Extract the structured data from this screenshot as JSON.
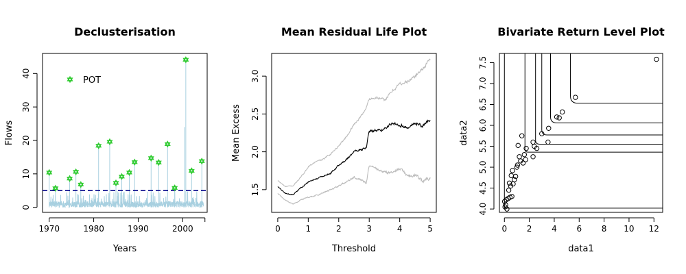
{
  "chart_data": [
    {
      "type": "line",
      "title": "Declusterisation",
      "xlabel": "Years",
      "ylabel": "Flows",
      "xlim": [
        1968.5,
        2005.5
      ],
      "ylim": [
        -1.5,
        46
      ],
      "xticks": [
        1970,
        1980,
        1990,
        2000
      ],
      "xtick_labels": [
        "1970",
        "1980",
        "1990",
        "2000"
      ],
      "xtick_extra": [
        2005
      ],
      "yticks": [
        0,
        10,
        20,
        30,
        40
      ],
      "ytick_labels": [
        "0",
        "10",
        "20",
        "30",
        "40"
      ],
      "threshold": 5,
      "legend": {
        "label": "POT",
        "position": "top-left"
      },
      "colors": {
        "series": "#a8d0e0",
        "pot": "#33cc33",
        "threshold": "#000088"
      },
      "pot_points": [
        {
          "x": 1970.0,
          "y": 10.4
        },
        {
          "x": 1971.4,
          "y": 5.7
        },
        {
          "x": 1974.6,
          "y": 8.6
        },
        {
          "x": 1976.0,
          "y": 10.6
        },
        {
          "x": 1977.1,
          "y": 6.8
        },
        {
          "x": 1981.1,
          "y": 18.4
        },
        {
          "x": 1983.6,
          "y": 19.6
        },
        {
          "x": 1985.0,
          "y": 7.3
        },
        {
          "x": 1986.3,
          "y": 9.2
        },
        {
          "x": 1988.0,
          "y": 10.4
        },
        {
          "x": 1989.2,
          "y": 13.5
        },
        {
          "x": 1992.9,
          "y": 14.7
        },
        {
          "x": 1994.6,
          "y": 13.4
        },
        {
          "x": 1996.6,
          "y": 18.9
        },
        {
          "x": 1998.2,
          "y": 5.8
        },
        {
          "x": 2000.7,
          "y": 44.1
        },
        {
          "x": 2002.0,
          "y": 10.9
        },
        {
          "x": 2004.3,
          "y": 13.8
        }
      ]
    },
    {
      "type": "line",
      "title": "Mean Residual Life Plot",
      "xlabel": "Threshold",
      "ylabel": "Mean Excess",
      "xlim": [
        -0.2,
        5.2
      ],
      "ylim": [
        1.2,
        3.3
      ],
      "xticks": [
        0,
        1,
        2,
        3,
        4,
        5
      ],
      "xtick_labels": [
        "0",
        "1",
        "2",
        "3",
        "4",
        "5"
      ],
      "yticks": [
        1.5,
        2.0,
        2.5,
        3.0
      ],
      "ytick_labels": [
        "1.5",
        "2.0",
        "2.5",
        "3.0"
      ],
      "colors": {
        "mean": "#000000",
        "ci": "#bbbbbb"
      },
      "x": [
        0,
        0.25,
        0.5,
        0.75,
        1.0,
        1.25,
        1.5,
        1.75,
        2.0,
        2.25,
        2.5,
        2.75,
        2.9,
        3.0,
        3.25,
        3.5,
        3.75,
        4.0,
        4.25,
        4.5,
        4.75,
        5.0
      ],
      "series": [
        {
          "values": [
            1.62,
            1.54,
            1.55,
            1.66,
            1.8,
            1.87,
            1.9,
            1.98,
            2.08,
            2.2,
            2.36,
            2.48,
            2.58,
            2.7,
            2.72,
            2.68,
            2.8,
            2.9,
            2.92,
            3.0,
            3.1,
            3.22
          ]
        },
        {
          "values": [
            1.54,
            1.45,
            1.43,
            1.52,
            1.6,
            1.64,
            1.68,
            1.72,
            1.82,
            1.9,
            2.0,
            2.03,
            2.05,
            2.27,
            2.28,
            2.3,
            2.38,
            2.36,
            2.32,
            2.38,
            2.34,
            2.43
          ]
        },
        {
          "values": [
            1.45,
            1.36,
            1.31,
            1.36,
            1.4,
            1.42,
            1.46,
            1.5,
            1.55,
            1.6,
            1.66,
            1.63,
            1.58,
            1.82,
            1.77,
            1.73,
            1.72,
            1.78,
            1.68,
            1.7,
            1.62,
            1.65
          ]
        }
      ]
    },
    {
      "type": "scatter",
      "title": "Bivariate Return Level Plot",
      "xlabel": "data1",
      "ylabel": "data2",
      "xlim": [
        -0.4,
        12.7
      ],
      "ylim": [
        3.92,
        7.72
      ],
      "xticks": [
        0,
        2,
        4,
        6,
        8,
        10,
        12
      ],
      "xtick_labels": [
        "0",
        "2",
        "4",
        "6",
        "8",
        "10",
        "12"
      ],
      "yticks": [
        4.0,
        4.5,
        5.0,
        5.5,
        6.0,
        6.5,
        7.0,
        7.5
      ],
      "ytick_labels": [
        "4.0",
        "4.5",
        "5.0",
        "5.5",
        "6.0",
        "6.5",
        "7.0",
        "7.5"
      ],
      "curves": [
        {
          "x_asym": 0.0,
          "y_asym": 4.02
        },
        {
          "x_asym": 1.65,
          "y_asym": 5.36
        },
        {
          "x_asym": 2.5,
          "y_asym": 5.55
        },
        {
          "x_asym": 3.0,
          "y_asym": 5.77
        },
        {
          "x_asym": 3.7,
          "y_asym": 6.06
        },
        {
          "x_asym": 5.3,
          "y_asym": 6.53
        }
      ],
      "points": [
        [
          0.05,
          4.05
        ],
        [
          0.1,
          4.1
        ],
        [
          0.02,
          4.18
        ],
        [
          0.2,
          4.0
        ],
        [
          0.15,
          4.22
        ],
        [
          0.3,
          4.25
        ],
        [
          0.45,
          4.28
        ],
        [
          0.6,
          4.3
        ],
        [
          0.35,
          4.45
        ],
        [
          0.5,
          4.55
        ],
        [
          0.4,
          4.62
        ],
        [
          0.7,
          4.6
        ],
        [
          0.55,
          4.8
        ],
        [
          0.8,
          4.7
        ],
        [
          0.9,
          4.78
        ],
        [
          0.65,
          4.92
        ],
        [
          1.0,
          5.0
        ],
        [
          1.05,
          5.05
        ],
        [
          1.3,
          5.15
        ],
        [
          1.5,
          5.1
        ],
        [
          1.7,
          5.18
        ],
        [
          1.6,
          5.3
        ],
        [
          1.2,
          5.25
        ],
        [
          1.75,
          5.45
        ],
        [
          1.1,
          5.52
        ],
        [
          1.4,
          5.75
        ],
        [
          2.3,
          5.25
        ],
        [
          2.4,
          5.5
        ],
        [
          2.6,
          5.45
        ],
        [
          2.3,
          5.6
        ],
        [
          3.0,
          5.8
        ],
        [
          3.5,
          5.6
        ],
        [
          3.55,
          5.93
        ],
        [
          4.2,
          6.2
        ],
        [
          4.4,
          6.18
        ],
        [
          4.65,
          6.32
        ],
        [
          5.7,
          6.67
        ],
        [
          12.2,
          7.58
        ]
      ]
    }
  ]
}
